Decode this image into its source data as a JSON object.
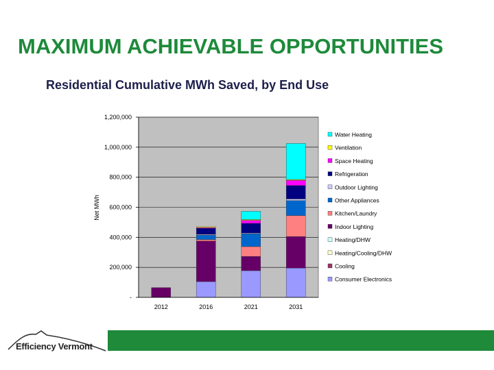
{
  "slide": {
    "title": "MAXIMUM ACHIEVABLE OPPORTUNITIES",
    "subtitle": "Residential Cumulative MWh Saved, by End Use",
    "logo_text": "Efficiency Vermont",
    "footer_color": "#1f8a3a",
    "title_color": "#1d8a3a"
  },
  "chart_data": {
    "type": "bar",
    "stacked": true,
    "title": "",
    "xlabel": "",
    "ylabel": "Net MWh",
    "ylim": [
      0,
      1200000
    ],
    "yticks": [
      0,
      200000,
      400000,
      600000,
      800000,
      1000000,
      1200000
    ],
    "ytick_labels": [
      "-",
      "200,000",
      "400,000",
      "600,000",
      "800,000",
      "1,000,000",
      "1,200,000"
    ],
    "categories": [
      "2012",
      "2016",
      "2021",
      "2031"
    ],
    "grid": true,
    "legend_position": "right",
    "series": [
      {
        "name": "Consumer Electronics",
        "color": "#9999ff",
        "values": [
          0,
          105000,
          178000,
          195000
        ]
      },
      {
        "name": "Cooling",
        "color": "#993366",
        "values": [
          0,
          0,
          0,
          0
        ]
      },
      {
        "name": "Heating/Cooling/DHW",
        "color": "#ffffcc",
        "values": [
          0,
          0,
          0,
          0
        ]
      },
      {
        "name": "Heating/DHW",
        "color": "#ccffff",
        "values": [
          0,
          0,
          0,
          0
        ]
      },
      {
        "name": "Indoor Lighting",
        "color": "#660066",
        "values": [
          65000,
          270000,
          95000,
          210000
        ]
      },
      {
        "name": "Kitchen/Laundry",
        "color": "#ff8080",
        "values": [
          0,
          10000,
          65000,
          140000
        ]
      },
      {
        "name": "Other Appliances",
        "color": "#0066cc",
        "values": [
          0,
          30000,
          85000,
          100000
        ]
      },
      {
        "name": "Outdoor Lighting",
        "color": "#ccccff",
        "values": [
          0,
          5000,
          5000,
          10000
        ]
      },
      {
        "name": "Refrigeration",
        "color": "#000080",
        "values": [
          0,
          40000,
          65000,
          90000
        ]
      },
      {
        "name": "Space Heating",
        "color": "#ff00ff",
        "values": [
          0,
          5000,
          20000,
          35000
        ]
      },
      {
        "name": "Ventilation",
        "color": "#ffff00",
        "values": [
          0,
          5000,
          5000,
          5000
        ]
      },
      {
        "name": "Water Heating",
        "color": "#00ffff",
        "values": [
          0,
          0,
          55000,
          240000
        ]
      }
    ]
  }
}
